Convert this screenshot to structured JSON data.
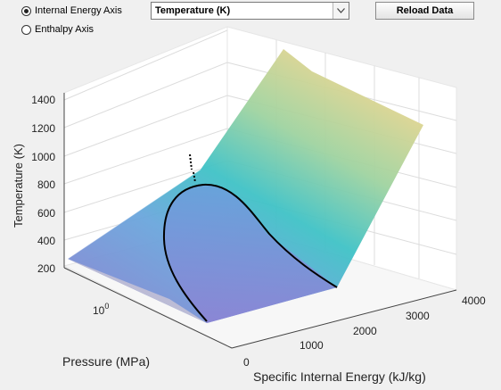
{
  "controls": {
    "radio_internal_energy": {
      "label": "Internal Energy Axis",
      "selected": true
    },
    "radio_enthalpy": {
      "label": "Enthalpy Axis",
      "selected": false
    },
    "dropdown": {
      "value": "Temperature (K)"
    },
    "reload_button": {
      "label": "Reload Data"
    }
  },
  "chart_data": {
    "type": "surface3d",
    "zlabel": "Temperature (K)",
    "ylabel": "Pressure (MPa)",
    "xlabel": "Specific Internal Energy (kJ/kg)",
    "zticks": [
      "200",
      "400",
      "600",
      "800",
      "1000",
      "1200",
      "1400"
    ],
    "xticks": [
      "0",
      "1000",
      "2000",
      "3000",
      "4000"
    ],
    "ytick_base": "10",
    "ytick_exp": "0",
    "zlim": [
      200,
      1400
    ],
    "xlim": [
      0,
      4000
    ],
    "colormap": [
      "#7b6fc8",
      "#5a9fd6",
      "#3fc0c8",
      "#8ed0a0",
      "#e8d28c"
    ],
    "saturation_dome_color": "#000000",
    "grid": true
  }
}
